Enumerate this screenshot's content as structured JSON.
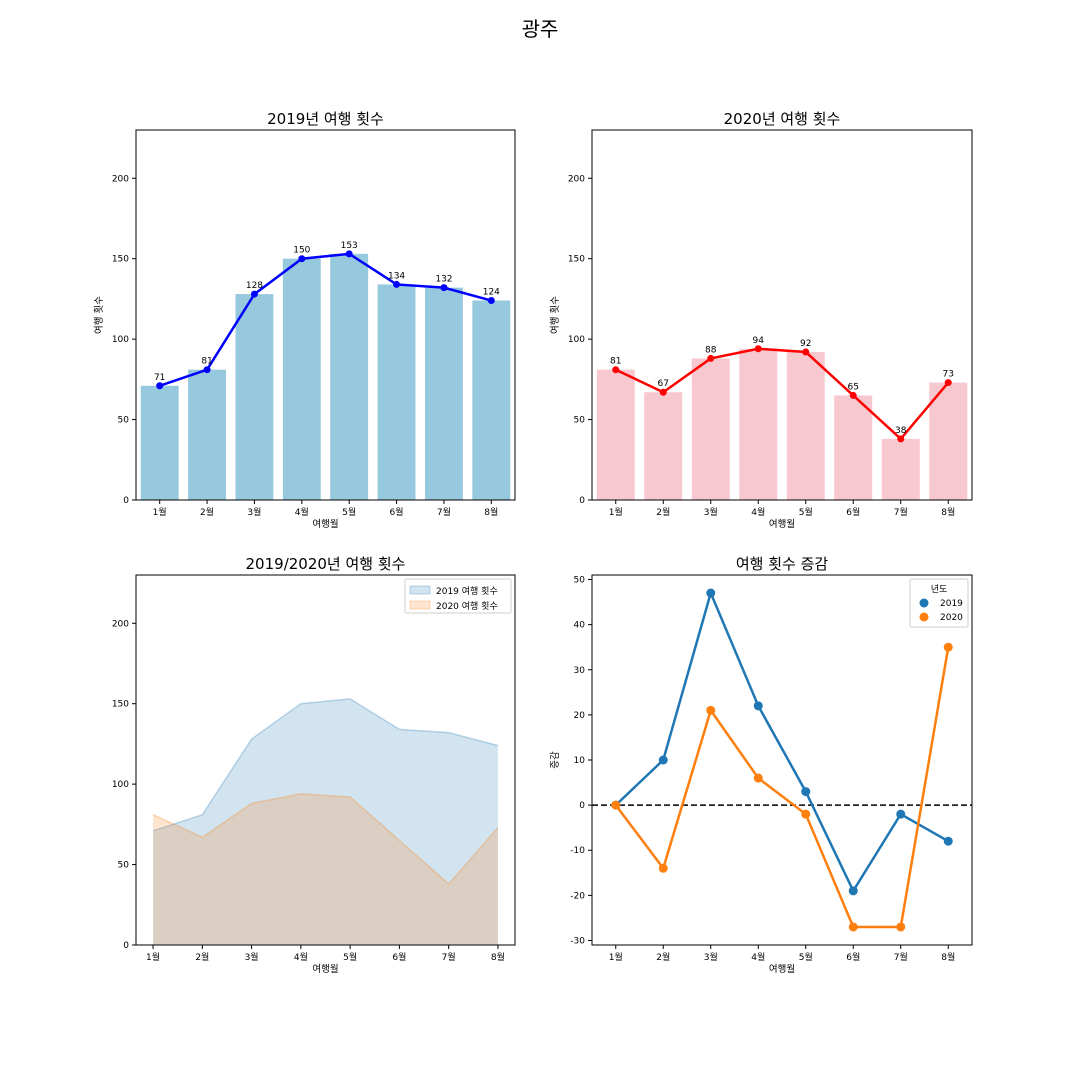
{
  "figure": {
    "suptitle": "광주"
  },
  "chart_data": [
    {
      "type": "bar",
      "title": "2019년 여행 횟수",
      "xlabel": "여행월",
      "ylabel": "여행 횟수",
      "categories": [
        "1월",
        "2월",
        "3월",
        "4월",
        "5월",
        "6월",
        "7월",
        "8월"
      ],
      "values": [
        71,
        81,
        128,
        150,
        153,
        134,
        132,
        124
      ],
      "overlay_line": true,
      "data_labels": [
        "71",
        "81",
        "128",
        "150",
        "153",
        "134",
        "132",
        "124"
      ],
      "ylim": [
        0,
        230
      ],
      "yticks": [
        0,
        50,
        100,
        150,
        200
      ],
      "bar_color": "#96c8de",
      "line_color": "#0000ff",
      "grid": false
    },
    {
      "type": "bar",
      "title": "2020년 여행 횟수",
      "xlabel": "여행월",
      "ylabel": "여행 횟수",
      "categories": [
        "1월",
        "2월",
        "3월",
        "4월",
        "5월",
        "6월",
        "7월",
        "8월"
      ],
      "values": [
        81,
        67,
        88,
        94,
        92,
        65,
        38,
        73
      ],
      "overlay_line": true,
      "data_labels": [
        "81",
        "67",
        "88",
        "94",
        "92",
        "65",
        "38",
        "73"
      ],
      "ylim": [
        0,
        230
      ],
      "yticks": [
        0,
        50,
        100,
        150,
        200
      ],
      "bar_color": "#f8c8d0",
      "line_color": "#ff0000",
      "grid": false
    },
    {
      "type": "area",
      "title": "2019/2020년 여행 횟수",
      "xlabel": "여행월",
      "ylabel": "",
      "categories": [
        "1월",
        "2월",
        "3월",
        "4월",
        "5월",
        "6월",
        "7월",
        "8월"
      ],
      "series": [
        {
          "name": "2019 여행 횟수",
          "values": [
            71,
            81,
            128,
            150,
            153,
            134,
            132,
            124
          ],
          "color": "#1f77b4"
        },
        {
          "name": "2020 여행 횟수",
          "values": [
            81,
            67,
            88,
            94,
            92,
            65,
            38,
            73
          ],
          "color": "#ff7f0e"
        }
      ],
      "ylim": [
        0,
        230
      ],
      "yticks": [
        0,
        50,
        100,
        150,
        200
      ],
      "legend": "top-right",
      "grid": false
    },
    {
      "type": "line",
      "title": "여행 횟수 증감",
      "xlabel": "여행월",
      "ylabel": "증감",
      "categories": [
        "1월",
        "2월",
        "3월",
        "4월",
        "5월",
        "6월",
        "7월",
        "8월"
      ],
      "series": [
        {
          "name": "2019",
          "values": [
            0,
            10,
            47,
            22,
            3,
            -19,
            -2,
            -8
          ],
          "color": "#1f77b4"
        },
        {
          "name": "2020",
          "values": [
            0,
            -14,
            21,
            6,
            -2,
            -27,
            -27,
            35
          ],
          "color": "#ff7f0e"
        }
      ],
      "legend_title": "년도",
      "legend": "top-right",
      "ylim": [
        -31,
        51
      ],
      "yticks": [
        -30,
        -20,
        -10,
        0,
        10,
        20,
        30,
        40,
        50
      ],
      "zero_line": true,
      "grid": false
    }
  ]
}
